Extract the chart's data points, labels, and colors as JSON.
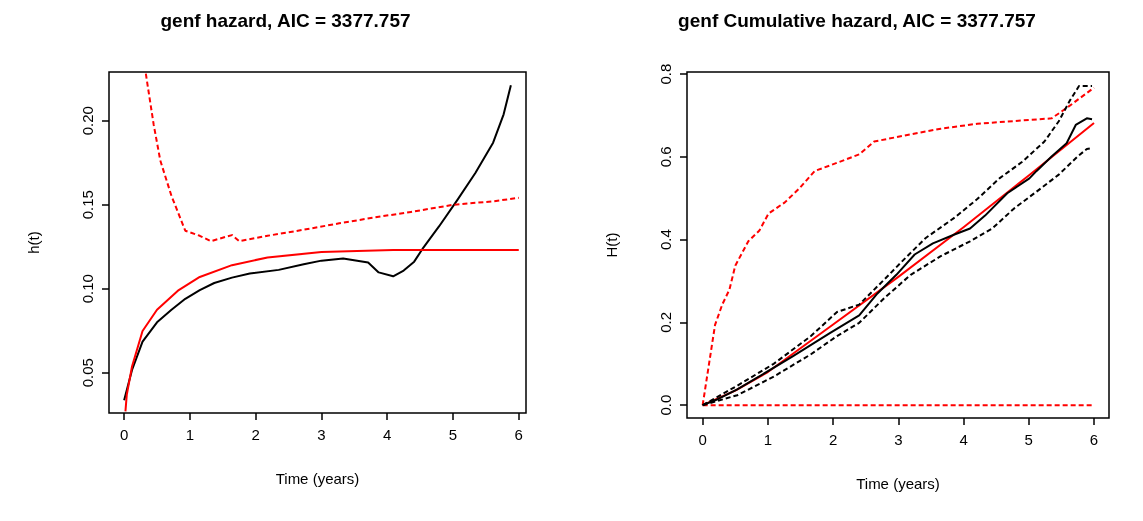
{
  "chart_data": [
    {
      "type": "line",
      "title": "genf hazard, AIC = 3377.757",
      "xlabel": "Time (years)",
      "ylabel": "h(t)",
      "xlim": [
        -0.23,
        6.11
      ],
      "ylim": [
        0.026,
        0.229
      ],
      "xticks": [
        0,
        1,
        2,
        3,
        4,
        5,
        6
      ],
      "yticks": [
        {
          "value": 0.05,
          "label": "0.05"
        },
        {
          "value": 0.1,
          "label": "0.10"
        },
        {
          "value": 0.15,
          "label": "0.15"
        },
        {
          "value": 0.2,
          "label": "0.20"
        }
      ],
      "grid": false,
      "series": [
        {
          "color": "#000000",
          "line_style": "solid",
          "x": [
            0,
            0.12,
            0.28,
            0.5,
            0.72,
            0.93,
            1.15,
            1.37,
            1.64,
            1.91,
            2.35,
            2.73,
            3.0,
            3.33,
            3.71,
            3.87,
            4.09,
            4.25,
            4.41,
            4.55,
            4.79,
            5.07,
            5.34,
            5.61,
            5.77,
            5.88
          ],
          "values": [
            0.0336,
            0.0516,
            0.0685,
            0.08,
            0.0875,
            0.094,
            0.0992,
            0.1034,
            0.1066,
            0.109,
            0.1112,
            0.1146,
            0.1167,
            0.118,
            0.1156,
            0.1097,
            0.1074,
            0.1108,
            0.1161,
            0.1245,
            0.1372,
            0.153,
            0.1689,
            0.1869,
            0.2038,
            0.2211
          ]
        },
        {
          "color": "#ff0000",
          "line_style": "solid",
          "x": [
            0.02,
            0.04,
            0.12,
            0.28,
            0.5,
            0.83,
            1.15,
            1.64,
            2.18,
            3.0,
            4.09,
            6.0
          ],
          "values": [
            0.027,
            0.0368,
            0.0537,
            0.0748,
            0.0875,
            0.0992,
            0.107,
            0.114,
            0.1186,
            0.1218,
            0.123,
            0.123
          ]
        },
        {
          "color": "#ff0000",
          "line_style": "dashed",
          "x": [
            0.33,
            0.45,
            0.55,
            0.72,
            0.93,
            1.15,
            1.32,
            1.45,
            1.64,
            1.75,
            2.18,
            2.73,
            3.27,
            3.82,
            4.36,
            5.01,
            5.61,
            6.0
          ],
          "values": [
            0.228,
            0.1975,
            0.1763,
            0.1552,
            0.1345,
            0.1315,
            0.1283,
            0.1298,
            0.1319,
            0.1283,
            0.1315,
            0.1351,
            0.1389,
            0.1425,
            0.1457,
            0.15,
            0.152,
            0.1541
          ]
        }
      ]
    },
    {
      "type": "line",
      "title": "genf Cumulative hazard, AIC = 3377.757",
      "xlabel": "Time (years)",
      "ylabel": "H(t)",
      "xlim": [
        -0.24,
        6.23
      ],
      "ylim": [
        -0.031,
        0.805
      ],
      "xticks": [
        0,
        1,
        2,
        3,
        4,
        5,
        6
      ],
      "yticks": [
        {
          "value": 0,
          "label": "0.0"
        },
        {
          "value": 0.2,
          "label": "0.2"
        },
        {
          "value": 0.4,
          "label": "0.4"
        },
        {
          "value": 0.6,
          "label": "0.6"
        },
        {
          "value": 0.8,
          "label": "0.8"
        }
      ],
      "grid": false,
      "series": [
        {
          "color": "#ff0000",
          "line_style": "solid",
          "x": [
            0,
            0.5,
            1,
            2,
            3,
            4,
            5,
            6
          ],
          "values": [
            0,
            0.035,
            0.08,
            0.195,
            0.31,
            0.43,
            0.555,
            0.682
          ]
        },
        {
          "color": "#ff0000",
          "line_style": "dashed",
          "x": [
            0,
            0.19,
            0.3,
            0.41,
            0.5,
            0.7,
            0.87,
            1.01,
            1.26,
            1.49,
            1.72,
            1.95,
            2.4,
            2.63,
            3.08,
            3.65,
            4.21,
            5.35,
            5.58,
            6.0
          ],
          "values": [
            0,
            0.194,
            0.243,
            0.279,
            0.337,
            0.396,
            0.422,
            0.463,
            0.49,
            0.525,
            0.566,
            0.579,
            0.606,
            0.637,
            0.651,
            0.668,
            0.68,
            0.693,
            0.718,
            0.767
          ]
        },
        {
          "color": "#ff0000",
          "line_style": "dashed",
          "x": [
            0,
            6
          ],
          "values": [
            0,
            0
          ]
        },
        {
          "color": "#000000",
          "line_style": "solid",
          "x": [
            0,
            0.24,
            0.53,
            0.81,
            1.38,
            1.95,
            2.4,
            2.68,
            2.97,
            3.25,
            3.53,
            3.87,
            4.1,
            4.33,
            4.67,
            5.01,
            5.12,
            5.35,
            5.58,
            5.72,
            5.89,
            5.97
          ],
          "values": [
            0,
            0.015,
            0.038,
            0.064,
            0.118,
            0.174,
            0.217,
            0.27,
            0.315,
            0.364,
            0.391,
            0.413,
            0.427,
            0.458,
            0.512,
            0.548,
            0.566,
            0.601,
            0.633,
            0.677,
            0.693,
            0.691
          ]
        },
        {
          "color": "#000000",
          "line_style": "dashed",
          "x": [
            0,
            0.53,
            1.09,
            1.66,
            2.06,
            2.4,
            2.8,
            3.08,
            3.42,
            3.87,
            4.21,
            4.55,
            4.9,
            5.24,
            5.46,
            5.63,
            5.77,
            5.97
          ],
          "values": [
            0,
            0.047,
            0.1,
            0.167,
            0.225,
            0.243,
            0.306,
            0.351,
            0.404,
            0.454,
            0.498,
            0.548,
            0.588,
            0.637,
            0.686,
            0.736,
            0.771,
            0.771
          ]
        },
        {
          "color": "#000000",
          "line_style": "dashed",
          "x": [
            0,
            0.53,
            1.09,
            1.66,
            2.06,
            2.4,
            2.8,
            3.19,
            3.65,
            4.1,
            4.44,
            4.78,
            5.12,
            5.46,
            5.75,
            5.89,
            5.97
          ],
          "values": [
            0,
            0.024,
            0.069,
            0.123,
            0.167,
            0.199,
            0.261,
            0.315,
            0.36,
            0.396,
            0.427,
            0.476,
            0.516,
            0.557,
            0.601,
            0.619,
            0.621
          ]
        }
      ]
    }
  ]
}
